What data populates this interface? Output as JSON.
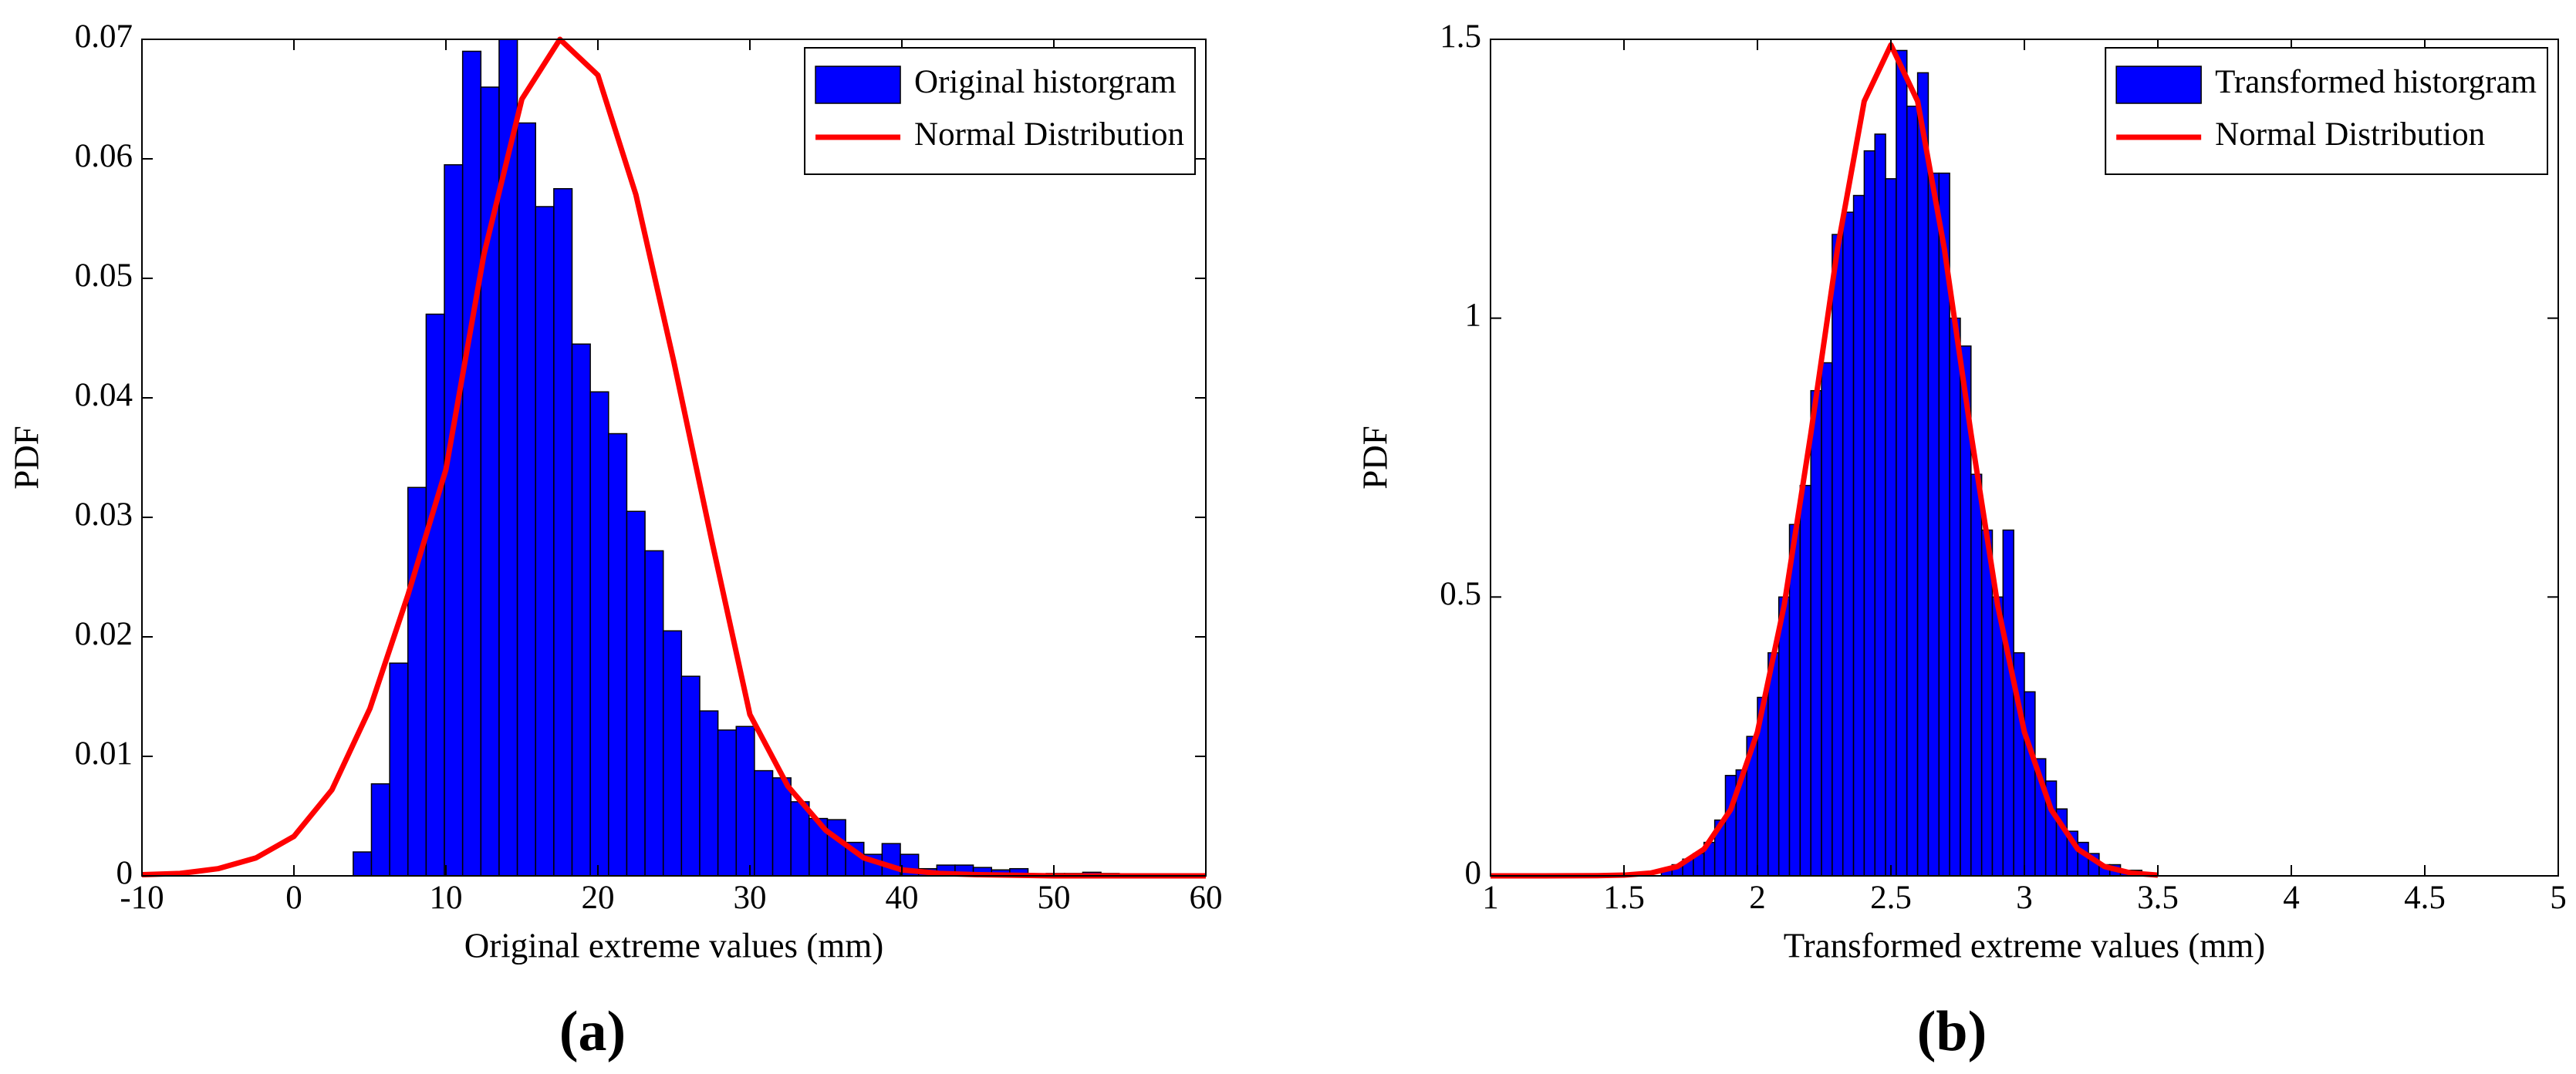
{
  "chart_data": [
    {
      "type": "histogram",
      "xlabel": "Original extreme values (mm)",
      "ylabel": "PDF",
      "panel_label": "(a)",
      "xlim": [
        -10,
        60
      ],
      "xticks": [
        -10,
        0,
        10,
        20,
        30,
        40,
        50,
        60
      ],
      "ylim": [
        0,
        0.07
      ],
      "yticks": [
        0,
        0.01,
        0.02,
        0.03,
        0.04,
        0.05,
        0.06,
        0.07
      ],
      "legend": "northeast",
      "grid": false,
      "series": [
        {
          "name": "Original historgram",
          "color": "#0000ff",
          "bins": [
            3.9,
            5.1,
            6.3,
            7.5,
            8.7,
            9.9,
            11.1,
            12.3,
            13.5,
            14.7,
            15.9,
            17.1,
            18.3,
            19.5,
            20.7,
            21.9,
            23.1,
            24.3,
            25.5,
            26.7,
            27.9,
            29.1,
            30.3,
            31.5,
            32.7,
            33.9,
            35.1,
            36.3,
            37.5,
            38.7,
            39.9,
            41.1,
            42.3,
            43.5,
            44.7,
            45.9,
            47.1,
            48.3,
            49.5,
            50.7,
            51.9,
            53.1,
            54.3
          ],
          "values": [
            0.002,
            0.0077,
            0.0178,
            0.0325,
            0.047,
            0.0595,
            0.069,
            0.066,
            0.07,
            0.063,
            0.056,
            0.0575,
            0.0445,
            0.0405,
            0.037,
            0.0305,
            0.0272,
            0.0205,
            0.0167,
            0.0138,
            0.0122,
            0.0125,
            0.0088,
            0.0082,
            0.0062,
            0.0048,
            0.0047,
            0.0028,
            0.0018,
            0.0027,
            0.0018,
            0.0006,
            0.0009,
            0.0009,
            0.0007,
            0.0005,
            0.0006,
            0,
            0.0002,
            0.0002,
            0.0003,
            0.0002
          ]
        },
        {
          "name": "Normal Distribution",
          "color": "#ff0000",
          "x": [
            -10,
            -7.5,
            -5,
            -2.5,
            0,
            2.5,
            5,
            7.5,
            10,
            12.5,
            15,
            17.5,
            20,
            22.5,
            25,
            27.5,
            30,
            32.5,
            35,
            37.5,
            40,
            42.5,
            45,
            50,
            55,
            60
          ],
          "values": [
            0.0001,
            0.0002,
            0.0006,
            0.0015,
            0.0033,
            0.0072,
            0.014,
            0.0235,
            0.034,
            0.052,
            0.065,
            0.07,
            0.067,
            0.057,
            0.043,
            0.028,
            0.0135,
            0.0075,
            0.0038,
            0.0015,
            0.0005,
            0.0002,
            0.0001,
            0,
            0,
            0
          ]
        }
      ]
    },
    {
      "type": "histogram",
      "xlabel": "Transformed extreme values (mm)",
      "ylabel": "PDF",
      "panel_label": "(b)",
      "xlim": [
        1,
        5
      ],
      "xticks": [
        1,
        1.5,
        2,
        2.5,
        3,
        3.5,
        4,
        4.5,
        5
      ],
      "ylim": [
        0,
        1.5
      ],
      "yticks": [
        0,
        0.5,
        1,
        1.5
      ],
      "legend": "northeast",
      "grid": false,
      "series": [
        {
          "name": "Transformed historgram",
          "color": "#0000ff",
          "bins": [
            1.64,
            1.68,
            1.72,
            1.76,
            1.8,
            1.84,
            1.88,
            1.92,
            1.96,
            2,
            2.04,
            2.08,
            2.12,
            2.16,
            2.2,
            2.24,
            2.28,
            2.32,
            2.36,
            2.4,
            2.44,
            2.48,
            2.52,
            2.56,
            2.6,
            2.64,
            2.68,
            2.72,
            2.76,
            2.8,
            2.84,
            2.88,
            2.92,
            2.96,
            3,
            3.04,
            3.08,
            3.12,
            3.16,
            3.2,
            3.24,
            3.28,
            3.32,
            3.36,
            3.4,
            3.44,
            3.48
          ],
          "values": [
            0.01,
            0.02,
            0.03,
            0.04,
            0.06,
            0.1,
            0.18,
            0.19,
            0.25,
            0.32,
            0.4,
            0.5,
            0.63,
            0.7,
            0.87,
            0.92,
            1.15,
            1.19,
            1.22,
            1.3,
            1.33,
            1.25,
            1.48,
            1.38,
            1.44,
            1.26,
            1.26,
            1,
            0.95,
            0.72,
            0.62,
            0.5,
            0.62,
            0.4,
            0.33,
            0.21,
            0.17,
            0.12,
            0.08,
            0.06,
            0.04,
            0.02,
            0.02,
            0.01,
            0.01,
            0.005
          ]
        },
        {
          "name": "Normal Distribution",
          "color": "#ff0000",
          "x": [
            1,
            1.1,
            1.2,
            1.3,
            1.4,
            1.5,
            1.6,
            1.7,
            1.8,
            1.9,
            2,
            2.1,
            2.2,
            2.3,
            2.4,
            2.5,
            2.6,
            2.7,
            2.8,
            2.9,
            3,
            3.1,
            3.2,
            3.3,
            3.4,
            3.5
          ],
          "values": [
            0,
            0,
            0,
            0.0001,
            0.0003,
            0.0013,
            0.005,
            0.0167,
            0.048,
            0.119,
            0.258,
            0.485,
            0.793,
            1.125,
            1.389,
            1.49,
            1.389,
            1.125,
            0.793,
            0.485,
            0.258,
            0.119,
            0.048,
            0.0167,
            0.005,
            0.0013
          ]
        }
      ]
    }
  ]
}
